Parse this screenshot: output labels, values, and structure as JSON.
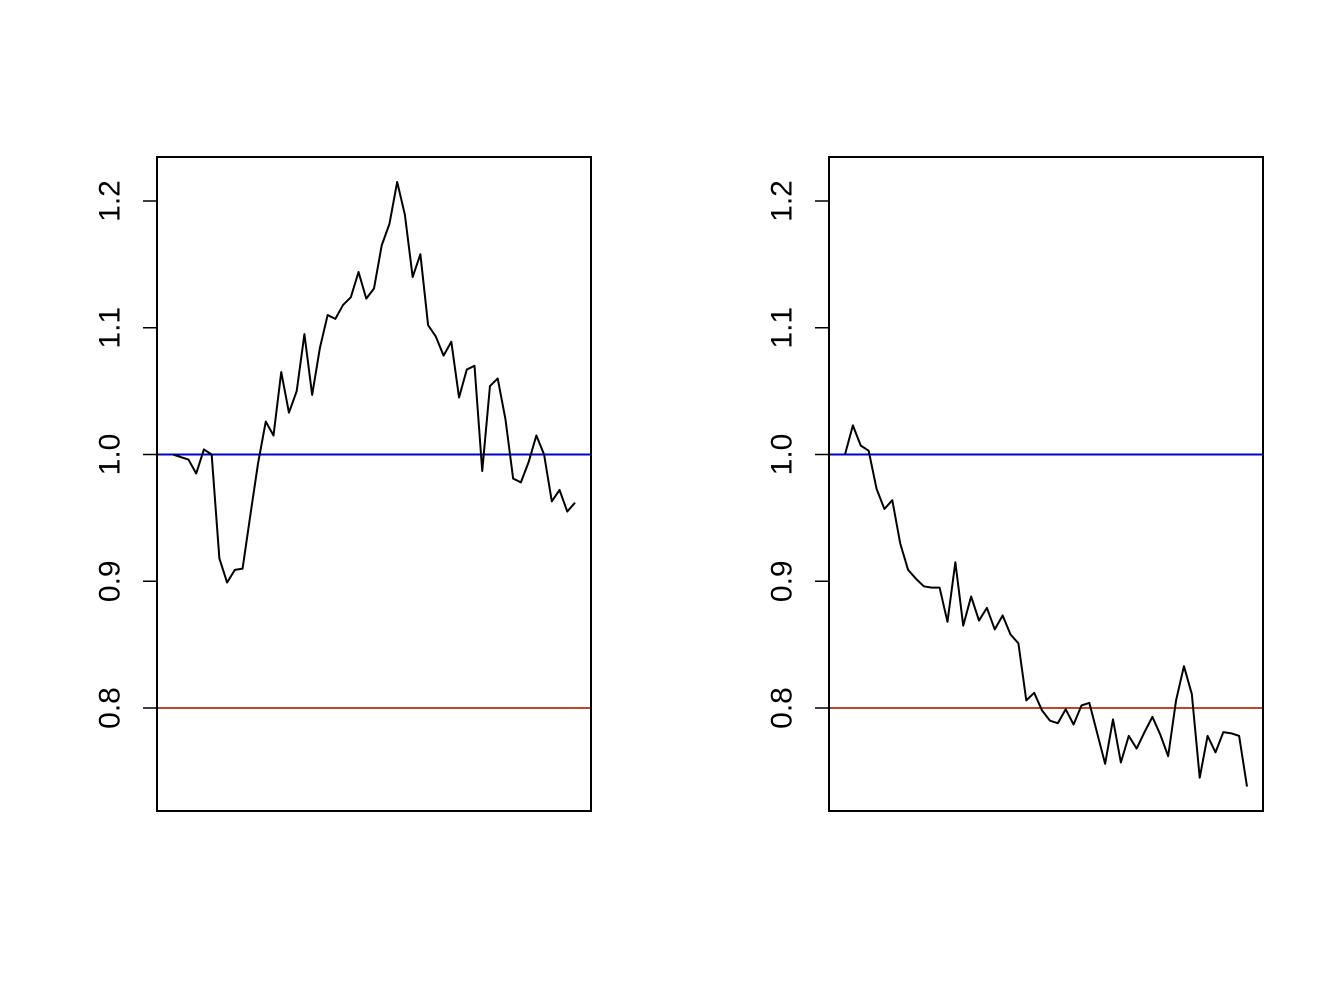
{
  "chart_data": [
    {
      "type": "line",
      "title": "",
      "xlabel": "",
      "ylabel": "",
      "ylim": [
        0.72,
        1.235
      ],
      "yticks": [
        0.8,
        0.9,
        1.0,
        1.1,
        1.2
      ],
      "ytick_labels": [
        "0.8",
        "0.9",
        "1.0",
        "1.1",
        "1.2"
      ],
      "x_axis_shown": false,
      "grid": false,
      "reference_lines": [
        {
          "y": 1.0,
          "color": "#0000cc"
        },
        {
          "y": 0.8,
          "color": "#c0462a"
        }
      ],
      "series": [
        {
          "color": "#000000",
          "values": [
            1.0,
            0.998,
            0.996,
            0.985,
            1.004,
            1.0,
            0.918,
            0.899,
            0.909,
            0.91,
            0.952,
            0.993,
            1.026,
            1.015,
            1.065,
            1.033,
            1.05,
            1.095,
            1.047,
            1.084,
            1.11,
            1.107,
            1.118,
            1.124,
            1.144,
            1.123,
            1.131,
            1.165,
            1.182,
            1.215,
            1.189,
            1.14,
            1.158,
            1.102,
            1.093,
            1.078,
            1.089,
            1.045,
            1.067,
            1.07,
            0.987,
            1.054,
            1.06,
            1.028,
            0.981,
            0.978,
            0.994,
            1.015,
            1.0,
            0.963,
            0.972,
            0.955,
            0.962
          ]
        }
      ]
    },
    {
      "type": "line",
      "title": "",
      "xlabel": "",
      "ylabel": "",
      "ylim": [
        0.72,
        1.235
      ],
      "yticks": [
        0.8,
        0.9,
        1.0,
        1.1,
        1.2
      ],
      "ytick_labels": [
        "0.8",
        "0.9",
        "1.0",
        "1.1",
        "1.2"
      ],
      "x_axis_shown": false,
      "grid": false,
      "reference_lines": [
        {
          "y": 1.0,
          "color": "#0000cc"
        },
        {
          "y": 0.8,
          "color": "#c0462a"
        }
      ],
      "series": [
        {
          "color": "#000000",
          "values": [
            1.0,
            1.023,
            1.007,
            1.003,
            0.973,
            0.957,
            0.964,
            0.93,
            0.909,
            0.902,
            0.896,
            0.895,
            0.895,
            0.868,
            0.915,
            0.865,
            0.888,
            0.869,
            0.879,
            0.862,
            0.873,
            0.858,
            0.851,
            0.806,
            0.812,
            0.798,
            0.79,
            0.788,
            0.799,
            0.787,
            0.802,
            0.804,
            0.78,
            0.756,
            0.791,
            0.757,
            0.778,
            0.768,
            0.781,
            0.793,
            0.779,
            0.762,
            0.806,
            0.833,
            0.811,
            0.745,
            0.778,
            0.765,
            0.781,
            0.78,
            0.778,
            0.738
          ]
        }
      ]
    }
  ]
}
